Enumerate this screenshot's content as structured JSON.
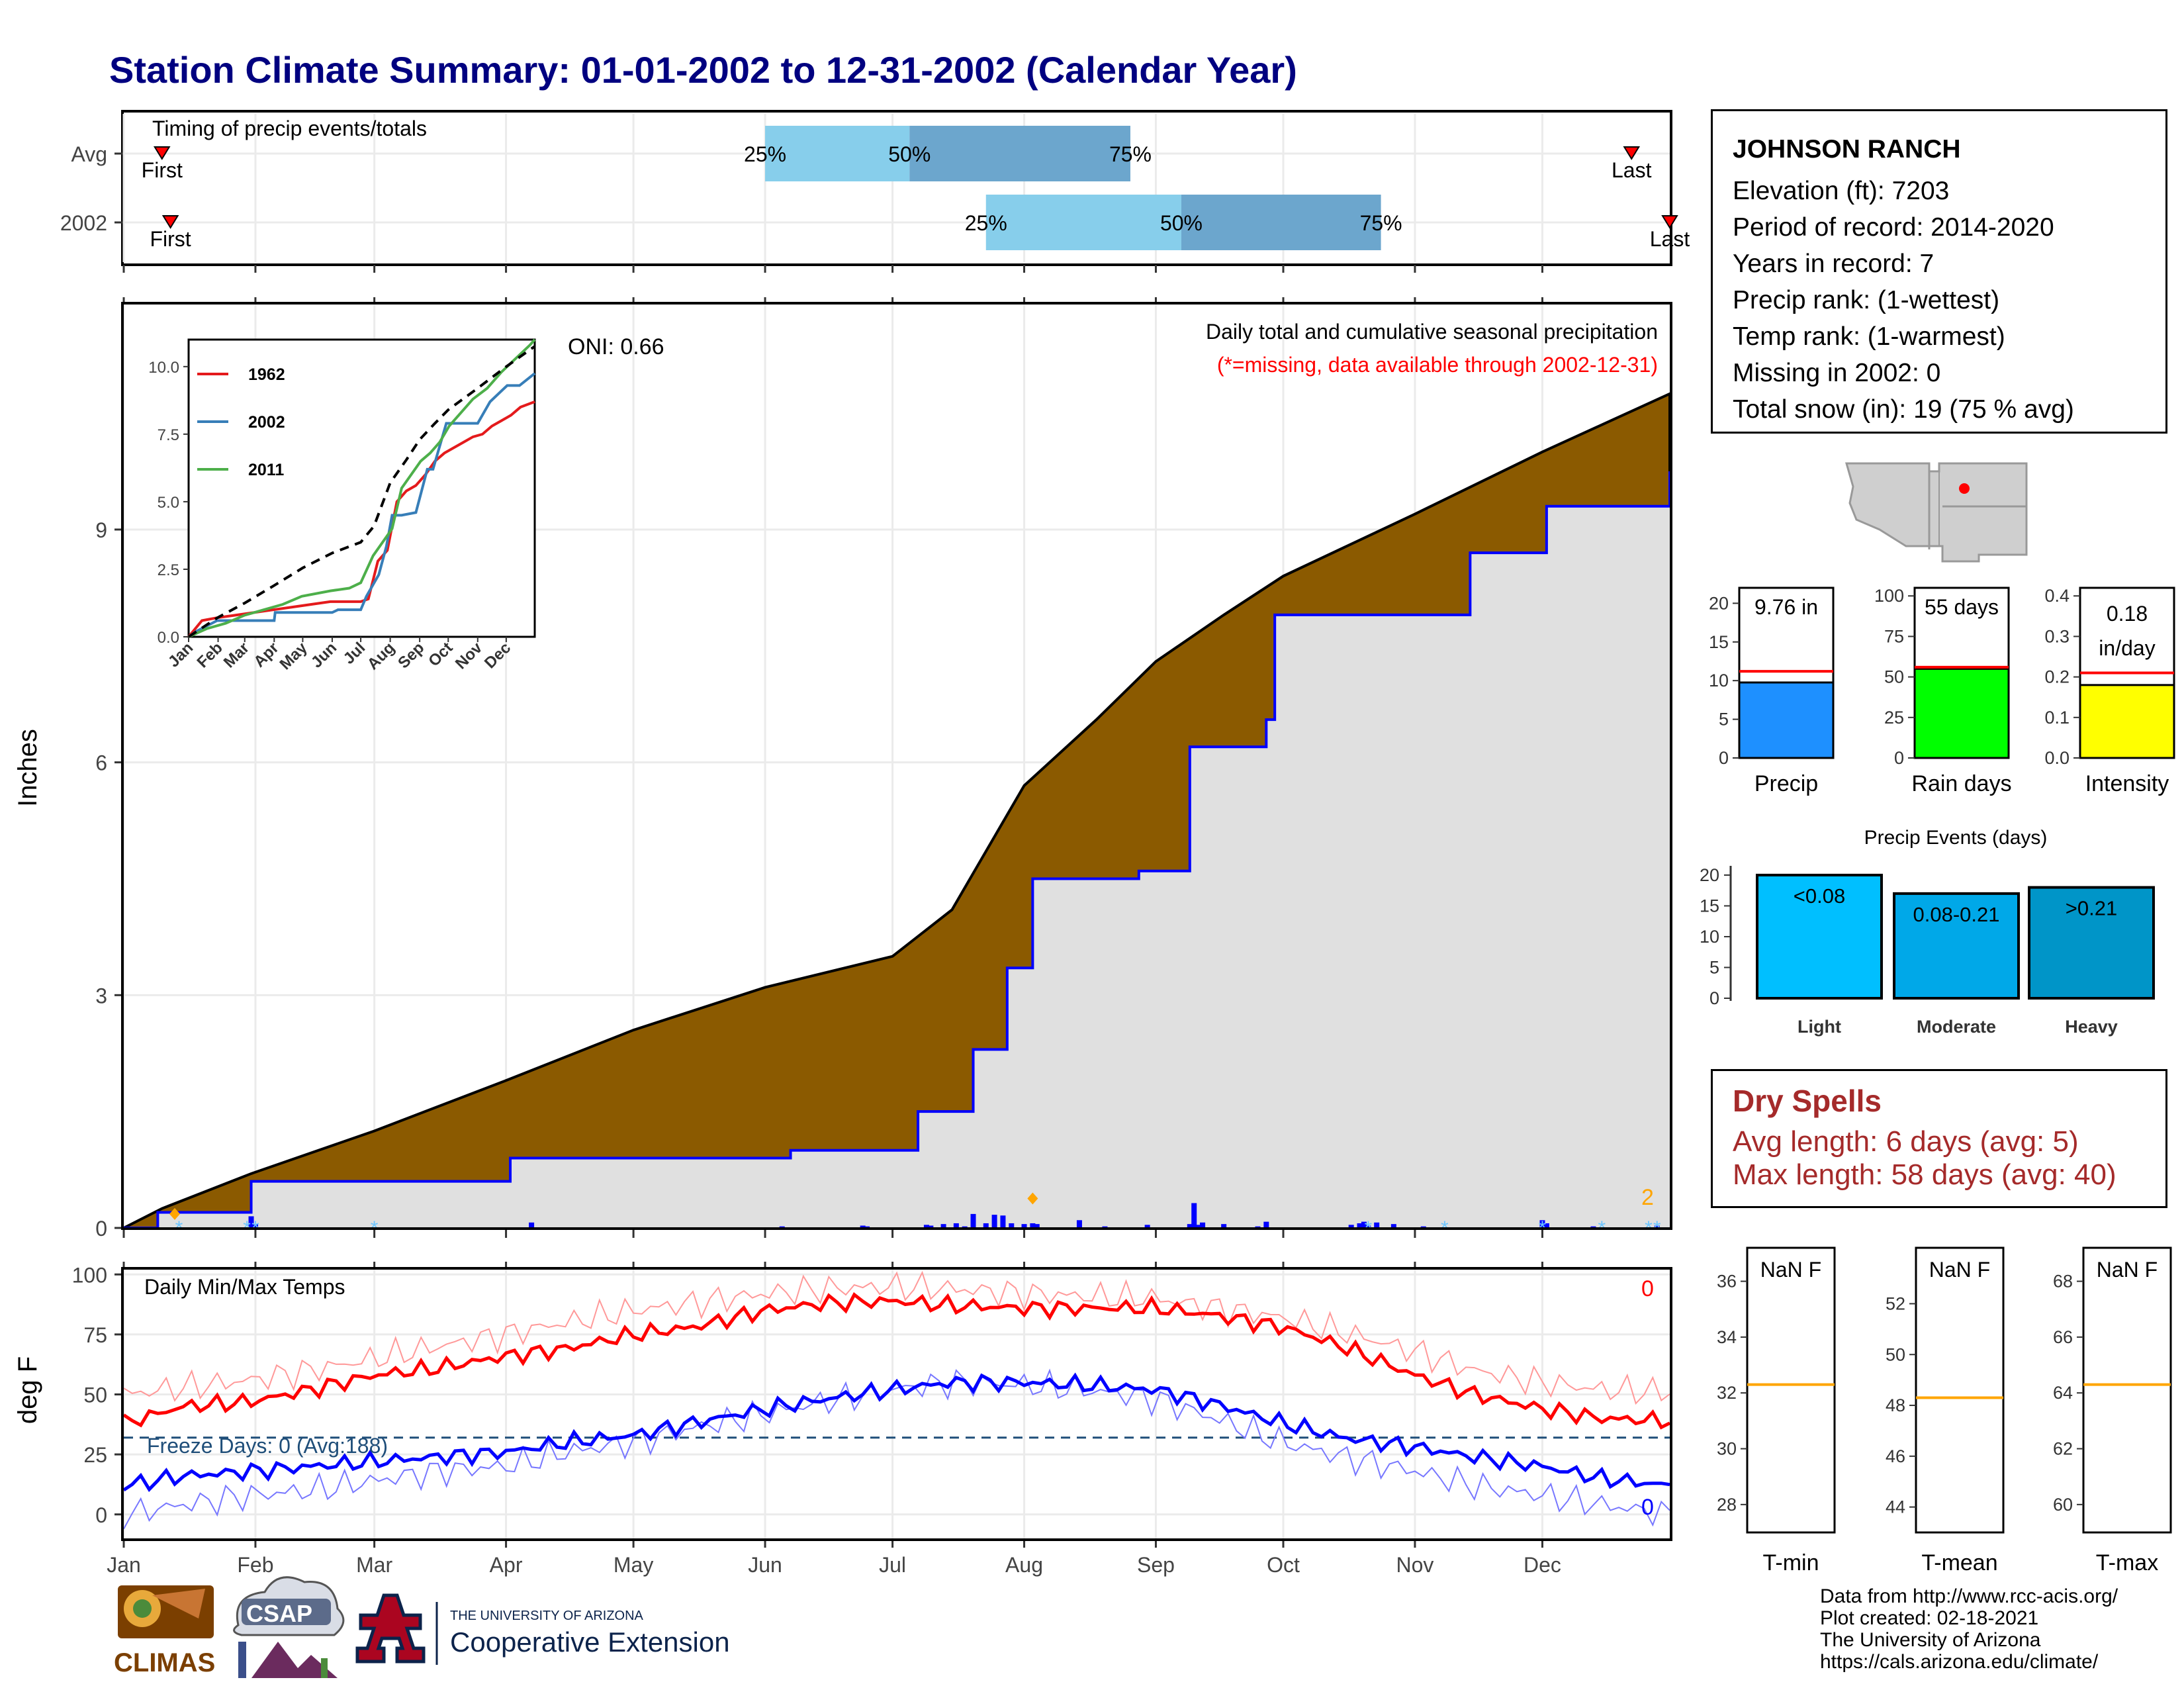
{
  "title": "Station Climate Summary: 01-01-2002 to 12-31-2002 (Calendar Year)",
  "station_info": {
    "name": "JOHNSON RANCH",
    "lines": [
      "Elevation (ft): 7203",
      "Period of record: 2014-2020",
      "Years in record: 7",
      "Precip rank:  (1-wettest)",
      "Temp rank:  (1-warmest)",
      "Missing in 2002: 0",
      "Total snow (in): 19 (75 % avg)"
    ]
  },
  "dry_spells": {
    "header": "Dry Spells",
    "avg_length": "Avg length: 6 days (avg: 5)",
    "max_length": "Max length: 58 days (avg: 40)"
  },
  "footer": [
    "Data from http://www.rcc-acis.org/",
    "Plot created: 02-18-2021",
    "The University of Arizona",
    "https://cals.arizona.edu/climate/"
  ],
  "logos": {
    "climas": "CLIMAS",
    "csap": "CSAP",
    "uofa_line1": "THE UNIVERSITY OF ARIZONA",
    "uofa_line2": "Cooperative Extension"
  },
  "colors": {
    "title": "#000080",
    "brown": "#8B5A00",
    "gray_fill": "#E0E0E0",
    "blue": "#0000FF",
    "red": "#FF0000",
    "light_blue": "#87CEEB",
    "mid_blue": "#6CA6CD",
    "orange": "#FFA500",
    "freeze_line": "#1F4E79",
    "dry_text": "#A52A2A"
  },
  "chart_data": [
    {
      "id": "timing",
      "type": "bar",
      "title": "Timing of precip events/totals",
      "rows": [
        {
          "label": "Avg",
          "first": "Jan 10",
          "first_label": "First",
          "last": "Dec 22",
          "last_label": "Last",
          "q25": "Jun 1",
          "q50": "Jul 5",
          "q75": "Aug 26",
          "q25_label": "25%",
          "q50_label": "50%",
          "q75_label": "75%"
        },
        {
          "label": "2002",
          "first": "Jan 12",
          "first_label": "First",
          "last": "Dec 31",
          "last_label": "Last",
          "q25": "Jul 23",
          "q50": "Sep 7",
          "q75": "Oct 24",
          "q25_label": "25%",
          "q50_label": "50%",
          "q75_label": "75%"
        }
      ],
      "x_ticks": [
        "Jan",
        "Feb",
        "Mar",
        "Apr",
        "May",
        "Jun",
        "Jul",
        "Aug",
        "Sep",
        "Oct",
        "Nov",
        "Dec"
      ]
    },
    {
      "id": "precip",
      "type": "area",
      "title": "Daily total and cumulative seasonal precipitation",
      "subtitle": "(*=missing, data available through 2002-12-31)",
      "oni": "ONI: 0.66",
      "ylabel": "Inches",
      "ylim": [
        0,
        11.9
      ],
      "y_ticks": [
        0,
        3,
        6,
        9
      ],
      "x_ticks": [
        "Jan",
        "Feb",
        "Mar",
        "Apr",
        "May",
        "Jun",
        "Jul",
        "Aug",
        "Sep",
        "Oct",
        "Nov",
        "Dec"
      ],
      "count_label": "2",
      "avg_cumulative": {
        "name": "avg",
        "x_day": [
          1,
          10,
          31,
          60,
          91,
          121,
          152,
          182,
          196,
          213,
          230,
          244,
          260,
          274,
          305,
          335,
          365
        ],
        "values": [
          0,
          0.25,
          0.7,
          1.25,
          1.9,
          2.55,
          3.1,
          3.5,
          4.1,
          5.7,
          6.55,
          7.3,
          7.9,
          8.4,
          9.2,
          10.0,
          10.75
        ]
      },
      "obs_cumulative": {
        "name": "2002",
        "x_day": [
          1,
          9,
          30,
          31,
          91,
          92,
          152,
          158,
          182,
          188,
          200,
          201,
          208,
          209,
          214,
          215,
          225,
          240,
          251,
          252,
          258,
          270,
          272,
          305,
          318,
          335,
          336,
          349,
          365
        ],
        "values": [
          0,
          0.2,
          0.2,
          0.6,
          0.6,
          0.9,
          0.9,
          1.0,
          1.0,
          1.5,
          1.5,
          2.3,
          2.3,
          3.35,
          3.35,
          4.5,
          4.5,
          4.6,
          4.6,
          6.2,
          6.2,
          6.55,
          7.9,
          7.9,
          8.7,
          8.7,
          9.3,
          9.3,
          9.75
        ]
      },
      "daily": {
        "x_day": [
          31,
          32,
          97,
          156,
          175,
          176,
          190,
          191,
          194,
          197,
          199,
          201,
          204,
          206,
          208,
          210,
          213,
          215,
          216,
          226,
          232,
          242,
          252,
          253,
          254,
          255,
          260,
          268,
          270,
          290,
          292,
          293,
          294,
          296,
          300,
          307,
          335,
          336,
          347,
          362
        ],
        "values": [
          0.15,
          0.05,
          0.07,
          0.02,
          0.03,
          0.02,
          0.04,
          0.03,
          0.05,
          0.06,
          0.02,
          0.18,
          0.06,
          0.17,
          0.16,
          0.06,
          0.05,
          0.06,
          0.05,
          0.1,
          0.02,
          0.04,
          0.05,
          0.32,
          0.04,
          0.07,
          0.05,
          0.02,
          0.08,
          0.04,
          0.06,
          0.08,
          0.03,
          0.07,
          0.05,
          0.02,
          0.1,
          0.06,
          0.02,
          0.03
        ]
      },
      "inset": {
        "type": "line",
        "y_ticks": [
          "0.0",
          "2.5",
          "5.0",
          "7.5",
          "10.0"
        ],
        "x_ticks": [
          "Jan",
          "Feb",
          "Mar",
          "Apr",
          "May",
          "Jun",
          "Jul",
          "Aug",
          "Sep",
          "Oct",
          "Nov",
          "Dec"
        ],
        "ylim": [
          0,
          11
        ],
        "series": [
          {
            "name": "1962",
            "color": "#E41A1C",
            "x": [
              1,
              15,
              30,
              50,
              70,
              90,
              110,
              130,
              150,
              170,
              182,
              190,
              200,
              210,
              220,
              230,
              240,
              250,
              260,
              270,
              280,
              290,
              300,
              310,
              320,
              330,
              340,
              350,
              365
            ],
            "values": [
              0,
              0.6,
              0.7,
              0.8,
              0.9,
              1.0,
              1.1,
              1.2,
              1.3,
              1.3,
              1.3,
              1.4,
              2.8,
              3.2,
              5.0,
              5.4,
              5.6,
              6.0,
              6.5,
              6.8,
              7.0,
              7.2,
              7.4,
              7.5,
              7.8,
              8.0,
              8.2,
              8.5,
              8.7
            ]
          },
          {
            "name": "2002",
            "color": "#377EB8",
            "x": [
              1,
              9,
              31,
              91,
              92,
              152,
              158,
              182,
              188,
              201,
              209,
              215,
              225,
              240,
              252,
              258,
              272,
              305,
              318,
              336,
              349,
              365
            ],
            "values": [
              0,
              0.2,
              0.6,
              0.6,
              0.9,
              0.9,
              1.0,
              1.0,
              1.5,
              2.3,
              3.35,
              4.5,
              4.5,
              4.6,
              6.2,
              6.2,
              7.9,
              7.9,
              8.7,
              9.3,
              9.3,
              9.75
            ]
          },
          {
            "name": "2011",
            "color": "#4DAF4A",
            "x": [
              1,
              20,
              40,
              60,
              80,
              100,
              120,
              150,
              170,
              182,
              195,
              205,
              215,
              225,
              235,
              245,
              255,
              265,
              275,
              285,
              300,
              315,
              330,
              345,
              360,
              365
            ],
            "values": [
              0,
              0.3,
              0.5,
              0.8,
              1.0,
              1.2,
              1.5,
              1.7,
              1.8,
              2.0,
              3.0,
              3.5,
              4.0,
              5.5,
              6.0,
              6.5,
              6.8,
              7.2,
              7.8,
              8.2,
              8.8,
              9.2,
              9.8,
              10.3,
              10.8,
              11.0
            ]
          },
          {
            "name": "avg",
            "color": "#000000",
            "dashed": true,
            "x": [
              1,
              31,
              60,
              91,
              121,
              152,
              182,
              196,
              213,
              230,
              244,
              260,
              274,
              305,
              335,
              365
            ],
            "values": [
              0,
              0.7,
              1.25,
              1.9,
              2.55,
              3.1,
              3.5,
              4.1,
              5.7,
              6.55,
              7.3,
              7.9,
              8.4,
              9.2,
              10.0,
              10.75
            ]
          }
        ]
      }
    },
    {
      "id": "temps",
      "type": "line",
      "title": "Daily Min/Max Temps",
      "ylabel": "deg F",
      "ylim": [
        -10,
        102
      ],
      "y_ticks": [
        0,
        25,
        50,
        75,
        100
      ],
      "x_ticks": [
        "Jan",
        "Feb",
        "Mar",
        "Apr",
        "May",
        "Jun",
        "Jul",
        "Aug",
        "Sep",
        "Oct",
        "Nov",
        "Dec"
      ],
      "freeze_label": "Freeze Days: 0 (Avg:188)",
      "freeze_threshold": 32,
      "max_count_label": "0",
      "min_count_label": "0",
      "series": [
        {
          "name": "obs max",
          "color": "#FF0000",
          "x": [
            1,
            15,
            31,
            45,
            60,
            75,
            91,
            105,
            121,
            135,
            152,
            166,
            182,
            196,
            213,
            227,
            244,
            258,
            274,
            288,
            305,
            319,
            335,
            349,
            365
          ],
          "values": [
            38,
            45,
            47,
            52,
            58,
            61,
            66,
            69,
            75,
            78,
            85,
            88,
            89,
            87,
            86,
            86,
            86,
            83,
            78,
            70,
            58,
            50,
            44,
            40,
            39
          ]
        },
        {
          "name": "avg max",
          "color": "#FF9999",
          "x": [
            1,
            15,
            31,
            45,
            60,
            75,
            91,
            105,
            121,
            135,
            152,
            166,
            182,
            196,
            213,
            227,
            244,
            258,
            274,
            288,
            305,
            319,
            335,
            349,
            365
          ],
          "values": [
            50,
            53,
            56,
            60,
            65,
            70,
            75,
            80,
            85,
            88,
            92,
            94,
            95,
            94,
            92,
            91,
            90,
            86,
            82,
            76,
            68,
            60,
            55,
            52,
            51
          ]
        },
        {
          "name": "obs min",
          "color": "#0000FF",
          "x": [
            1,
            15,
            31,
            45,
            60,
            75,
            91,
            105,
            121,
            135,
            152,
            166,
            182,
            196,
            213,
            227,
            244,
            258,
            274,
            288,
            305,
            319,
            335,
            349,
            365
          ],
          "values": [
            12,
            16,
            18,
            20,
            22,
            24,
            26,
            30,
            33,
            38,
            44,
            48,
            52,
            55,
            55,
            54,
            52,
            46,
            38,
            32,
            28,
            24,
            20,
            15,
            12
          ]
        },
        {
          "name": "avg min",
          "color": "#7777FF",
          "x": [
            1,
            15,
            31,
            45,
            60,
            75,
            91,
            105,
            121,
            135,
            152,
            166,
            182,
            196,
            213,
            227,
            244,
            258,
            274,
            288,
            305,
            319,
            335,
            349,
            365
          ],
          "values": [
            0,
            4,
            8,
            10,
            14,
            18,
            20,
            26,
            30,
            36,
            42,
            47,
            52,
            55,
            54,
            52,
            48,
            40,
            30,
            24,
            18,
            12,
            8,
            4,
            0
          ]
        }
      ]
    },
    {
      "id": "bars-summary",
      "type": "bar",
      "panels": [
        {
          "name": "Precip",
          "label": "9.76 in",
          "value": 9.76,
          "avg": 11.2,
          "ylim": [
            0,
            22
          ],
          "y_ticks": [
            0,
            5,
            10,
            15,
            20
          ],
          "color": "#1E90FF"
        },
        {
          "name": "Rain days",
          "label": "55 days",
          "value": 55,
          "avg": 56,
          "ylim": [
            0,
            105
          ],
          "y_ticks": [
            0,
            25,
            50,
            75,
            100
          ],
          "color": "#00FF00"
        },
        {
          "name": "Intensity",
          "label": "0.18 in/day",
          "value": 0.18,
          "avg": 0.21,
          "ylim": [
            0,
            0.42
          ],
          "y_ticks": [
            "0.0",
            "0.1",
            "0.2",
            "0.3",
            "0.4"
          ],
          "color": "#FFFF00"
        }
      ]
    },
    {
      "id": "precip-events",
      "type": "bar",
      "title": "Precip Events (days)",
      "categories": [
        "Light",
        "Moderate",
        "Heavy"
      ],
      "bar_labels": [
        "<0.08",
        "0.08-0.21",
        ">0.21"
      ],
      "values": [
        20,
        17,
        18
      ],
      "ylim": [
        0,
        21.5
      ],
      "y_ticks": [
        0,
        5,
        10,
        15,
        20
      ],
      "colors": [
        "#00BFFF",
        "#00A8E8",
        "#0095C8"
      ]
    },
    {
      "id": "temp-summary",
      "type": "bar",
      "panels": [
        {
          "name": "T-min",
          "label": "NaN F",
          "avg": 32.3,
          "ylim": [
            27,
            37.2
          ],
          "y_ticks": [
            28,
            30,
            32,
            34,
            36
          ]
        },
        {
          "name": "T-mean",
          "label": "NaN F",
          "avg": 48.3,
          "ylim": [
            43,
            54.2
          ],
          "y_ticks": [
            44,
            46,
            48,
            50,
            52
          ]
        },
        {
          "name": "T-max",
          "label": "NaN F",
          "avg": 64.3,
          "ylim": [
            59,
            69.2
          ],
          "y_ticks": [
            60,
            62,
            64,
            66,
            68
          ]
        }
      ]
    }
  ]
}
